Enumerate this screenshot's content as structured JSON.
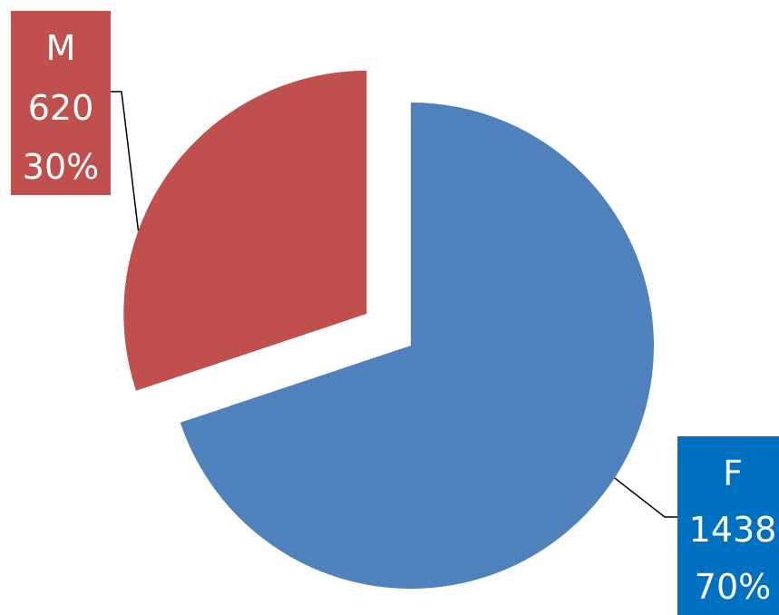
{
  "chart_data": {
    "type": "pie",
    "exploded_slice": "M",
    "slices": [
      {
        "label": "F",
        "value": 1438,
        "percent": "70%",
        "color": "#4F81BD",
        "label_box_color": "#0070C0"
      },
      {
        "label": "M",
        "value": 620,
        "percent": "30%",
        "color": "#C0504D",
        "label_box_color": "#C0504D"
      }
    ]
  }
}
